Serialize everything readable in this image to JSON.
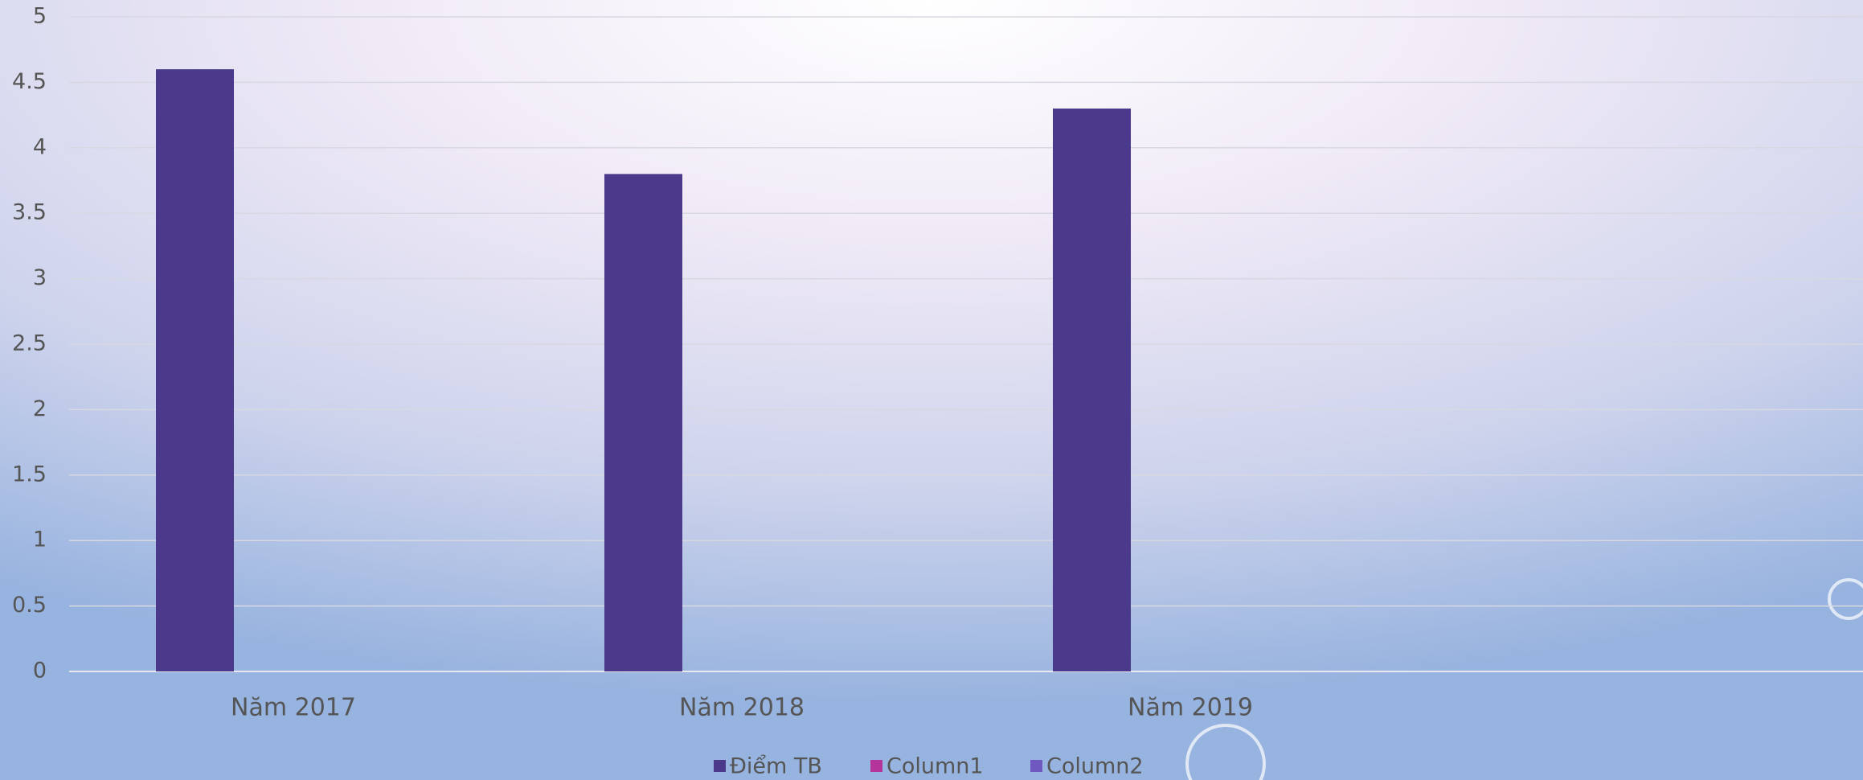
{
  "chart_data": {
    "type": "bar",
    "categories": [
      "Năm 2017",
      "Năm 2018",
      "Năm 2019",
      null
    ],
    "series": [
      {
        "name": "Điểm TB",
        "color": "#4b3a8c",
        "values": [
          4.6,
          3.8,
          4.3,
          null
        ]
      },
      {
        "name": "Column1",
        "color": "#b5349b",
        "values": [
          null,
          null,
          null,
          null
        ]
      },
      {
        "name": "Column2",
        "color": "#6f58c0",
        "values": [
          null,
          null,
          null,
          null
        ]
      }
    ],
    "ylim": [
      0,
      5
    ],
    "yticks": [
      0,
      0.5,
      1,
      1.5,
      2,
      2.5,
      3,
      3.5,
      4,
      4.5,
      5
    ],
    "grid": true,
    "legend": "bottom"
  }
}
